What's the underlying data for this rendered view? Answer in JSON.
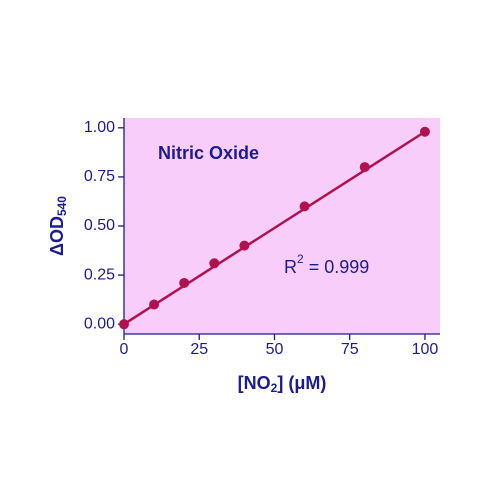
{
  "chart_data": {
    "type": "scatter",
    "annotations": {
      "label": "Nitric Oxide",
      "r2": [
        "R",
        "2",
        " = 0.999"
      ]
    },
    "x_label": [
      "[NO",
      "2",
      "] (μM)"
    ],
    "y_label": [
      "ΔOD",
      "540"
    ],
    "x": [
      0,
      10,
      20,
      30,
      40,
      60,
      80,
      100
    ],
    "values": [
      0,
      0.1,
      0.21,
      0.31,
      0.4,
      0.6,
      0.8,
      0.98
    ],
    "color": "#b0124f",
    "trend_line": {
      "x": [
        0,
        100
      ],
      "y": [
        0,
        0.98
      ]
    },
    "background": "#f9cdf9",
    "xlim": [
      0,
      105
    ],
    "xticks": [
      0,
      25,
      50,
      75,
      100
    ],
    "ylim": [
      -0.05,
      1.05
    ],
    "yticks": [
      {
        "value": 0,
        "label": "0.00"
      },
      {
        "value": 0.25,
        "label": "0.25"
      },
      {
        "value": 0.5,
        "label": "0.50"
      },
      {
        "value": 0.75,
        "label": "0.75"
      },
      {
        "value": 1,
        "label": "1.00"
      }
    ]
  }
}
